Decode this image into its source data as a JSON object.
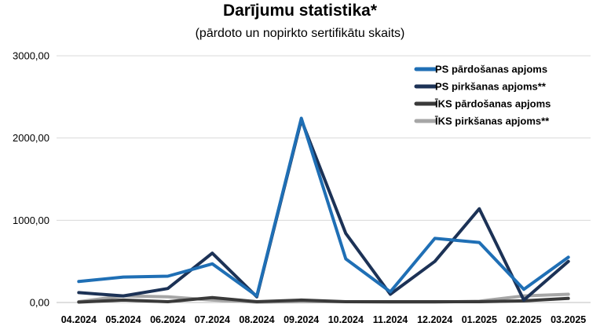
{
  "chart_data": {
    "type": "line",
    "title": "Darījumu statistika*",
    "subtitle": "(pārdoto un nopirkto sertifikātu skaits)",
    "categories": [
      "04.2024",
      "05.2024",
      "06.2024",
      "07.2024",
      "08.2024",
      "09.2024",
      "10.2024",
      "11.2024",
      "12.2024",
      "01.2025",
      "02.2025",
      "03.2025"
    ],
    "ylim": [
      0,
      3000
    ],
    "yticks": [
      0,
      1000,
      2000,
      3000
    ],
    "ytick_labels": [
      "0,00",
      "1000,00",
      "2000,00",
      "3000,00"
    ],
    "grid": true,
    "legend_position": "top-right",
    "series": [
      {
        "name": "PS pārdošanas apjoms",
        "color": "#1f6fb5",
        "values": [
          255,
          310,
          320,
          470,
          80,
          2240,
          530,
          130,
          780,
          730,
          160,
          550
        ]
      },
      {
        "name": "PS pirkšanas apjoms**",
        "color": "#1c3256",
        "values": [
          120,
          80,
          170,
          600,
          70,
          2220,
          840,
          100,
          500,
          1140,
          30,
          500
        ]
      },
      {
        "name": "ĪKS pārdošanas apjoms",
        "color": "#3a3a3a",
        "values": [
          5,
          30,
          10,
          60,
          10,
          30,
          10,
          10,
          10,
          10,
          20,
          50
        ]
      },
      {
        "name": "ĪKS pirkšanas apjoms**",
        "color": "#a6a6a6",
        "values": [
          10,
          80,
          70,
          30,
          5,
          10,
          10,
          5,
          5,
          15,
          80,
          100
        ]
      }
    ]
  }
}
